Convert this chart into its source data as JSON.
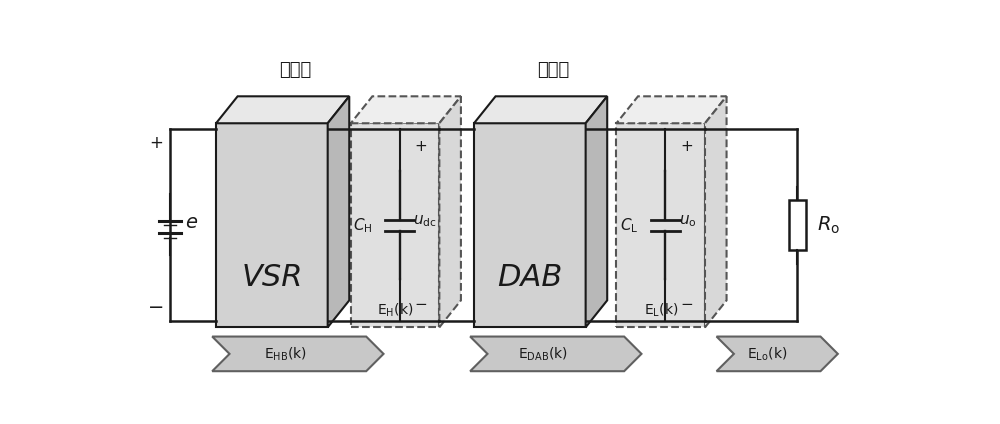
{
  "bg_color": "#ffffff",
  "label_input": "输入级",
  "label_output": "输出级",
  "label_VSR": "VSR",
  "label_DAB": "DAB",
  "colors": {
    "block_face": "#d2d2d2",
    "block_side": "#b8b8b8",
    "block_top": "#e8e8e8",
    "dashed_box_face": "#e0e0e0",
    "dashed_edge": "#555555",
    "arrow_fill": "#c8c8c8",
    "arrow_edge": "#606060",
    "line": "#1a1a1a",
    "text": "#1a1a1a",
    "white": "#ffffff"
  },
  "figsize": [
    10.0,
    4.24
  ],
  "dpi": 100,
  "xlim": [
    0,
    1000
  ],
  "ylim": [
    0,
    424
  ]
}
